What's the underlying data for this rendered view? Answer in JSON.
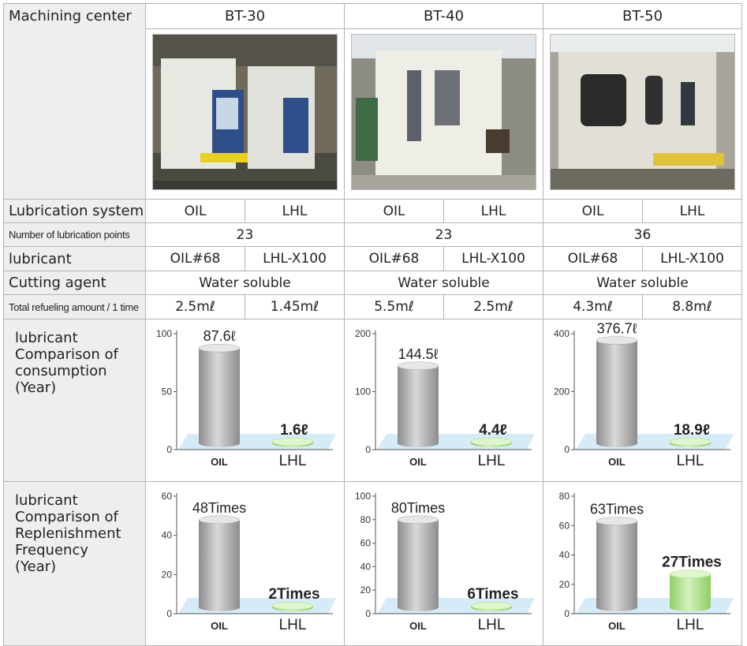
{
  "header": {
    "row_label": "Machining center",
    "machines": [
      "BT-30",
      "BT-40",
      "BT-50"
    ]
  },
  "rows": {
    "lubrication_system": {
      "label": "Lubrication system",
      "oil": "OIL",
      "lhl": "LHL"
    },
    "lubrication_points": {
      "label": "Number of lubrication points",
      "values": [
        "23",
        "23",
        "36"
      ]
    },
    "lubricant": {
      "label": "lubricant",
      "oil": "OIL#68",
      "lhl": "LHL-X100"
    },
    "cutting_agent": {
      "label": "Cutting agent",
      "values": [
        "Water soluble",
        "Water soluble",
        "Water soluble"
      ]
    },
    "refueling": {
      "label": "Total refueling amount / 1 time",
      "values": [
        [
          "2.5mℓ",
          "1.45mℓ"
        ],
        [
          "5.5mℓ",
          "2.5mℓ"
        ],
        [
          "4.3mℓ",
          "8.8mℓ"
        ]
      ]
    },
    "consumption": {
      "label_lines": [
        "lubricant",
        "Comparison of",
        "consumption",
        "(Year)"
      ]
    },
    "frequency": {
      "label_lines": [
        "lubricant",
        "Comparison of",
        "Replenishment",
        "Frequency",
        "(Year)"
      ]
    }
  },
  "photos": [
    {
      "alt": "BT-30 machining center photo"
    },
    {
      "alt": "BT-40 machining center photo"
    },
    {
      "alt": "BT-50 machining center photo"
    }
  ],
  "colors": {
    "cylinder_gray": "#a9a9a9",
    "cylinder_green": "#a8dd82",
    "floor_blue": "#cfe8f7"
  },
  "chart_data": [
    {
      "type": "bar",
      "group": "consumption",
      "machine": "BT-30",
      "categories": [
        "OIL",
        "LHL"
      ],
      "values": [
        87.6,
        1.6
      ],
      "labels": [
        "87.6ℓ",
        "1.6ℓ"
      ],
      "yticks": [
        0,
        50,
        100
      ],
      "ylim": [
        0,
        100
      ]
    },
    {
      "type": "bar",
      "group": "consumption",
      "machine": "BT-40",
      "categories": [
        "OIL",
        "LHL"
      ],
      "values": [
        144.5,
        4.4
      ],
      "labels": [
        "144.5ℓ",
        "4.4ℓ"
      ],
      "yticks": [
        0,
        100,
        200
      ],
      "ylim": [
        0,
        200
      ]
    },
    {
      "type": "bar",
      "group": "consumption",
      "machine": "BT-50",
      "categories": [
        "OIL",
        "LHL"
      ],
      "values": [
        376.7,
        18.9
      ],
      "labels": [
        "376.7ℓ",
        "18.9ℓ"
      ],
      "yticks": [
        0,
        200,
        400
      ],
      "ylim": [
        0,
        400
      ]
    },
    {
      "type": "bar",
      "group": "frequency",
      "machine": "BT-30",
      "categories": [
        "OIL",
        "LHL"
      ],
      "values": [
        48,
        2
      ],
      "labels": [
        "48Times",
        "2Times"
      ],
      "yticks": [
        0,
        20,
        40,
        60
      ],
      "ylim": [
        0,
        60
      ]
    },
    {
      "type": "bar",
      "group": "frequency",
      "machine": "BT-40",
      "categories": [
        "OIL",
        "LHL"
      ],
      "values": [
        80,
        6
      ],
      "labels": [
        "80Times",
        "6Times"
      ],
      "yticks": [
        0,
        20,
        40,
        60,
        80,
        100
      ],
      "ylim": [
        0,
        100
      ]
    },
    {
      "type": "bar",
      "group": "frequency",
      "machine": "BT-50",
      "categories": [
        "OIL",
        "LHL"
      ],
      "values": [
        63,
        27
      ],
      "labels": [
        "63Times",
        "27Times"
      ],
      "yticks": [
        0,
        20,
        40,
        60,
        80
      ],
      "ylim": [
        0,
        80
      ]
    }
  ]
}
